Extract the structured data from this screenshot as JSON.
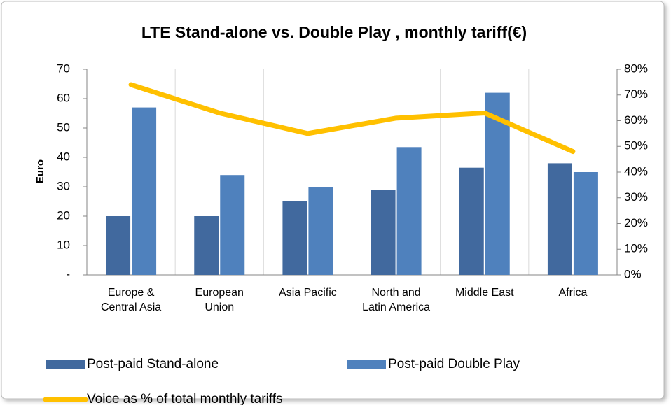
{
  "chart_data": {
    "type": "bar_line",
    "title": "LTE Stand-alone vs. Double Play , monthly tariff(€)",
    "y_label": "Euro",
    "categories": [
      "Europe & Central Asia",
      "European Union",
      "Asia Pacific",
      "North and Latin America",
      "Middle East",
      "Africa"
    ],
    "series": [
      {
        "name": "Post-paid Stand-alone",
        "type": "bar",
        "color": "#41699e",
        "values": [
          20,
          20,
          25,
          29,
          36.5,
          38
        ]
      },
      {
        "name": "Post-paid Double Play",
        "type": "bar",
        "color": "#4f81bd",
        "values": [
          57,
          34,
          30,
          43.5,
          62,
          35
        ]
      },
      {
        "name": "Voice as % of total monthly tariffs",
        "type": "line",
        "axis": "y2",
        "color": "#ffc000",
        "values": [
          74,
          63,
          55,
          61,
          63,
          48
        ]
      }
    ],
    "ylim": [
      0,
      70
    ],
    "yticks": [
      {
        "value": 0,
        "label": "-"
      },
      10,
      20,
      30,
      40,
      50,
      60,
      70
    ],
    "y2lim": [
      0,
      80
    ],
    "y2ticks": [
      {
        "value": 0,
        "label": "0%"
      },
      {
        "value": 10,
        "label": "10%"
      },
      {
        "value": 20,
        "label": "20%"
      },
      {
        "value": 30,
        "label": "30%"
      },
      {
        "value": 40,
        "label": "40%"
      },
      {
        "value": 50,
        "label": "50%"
      },
      {
        "value": 60,
        "label": "60%"
      },
      {
        "value": 70,
        "label": "70%"
      },
      {
        "value": 80,
        "label": "80%"
      }
    ]
  }
}
